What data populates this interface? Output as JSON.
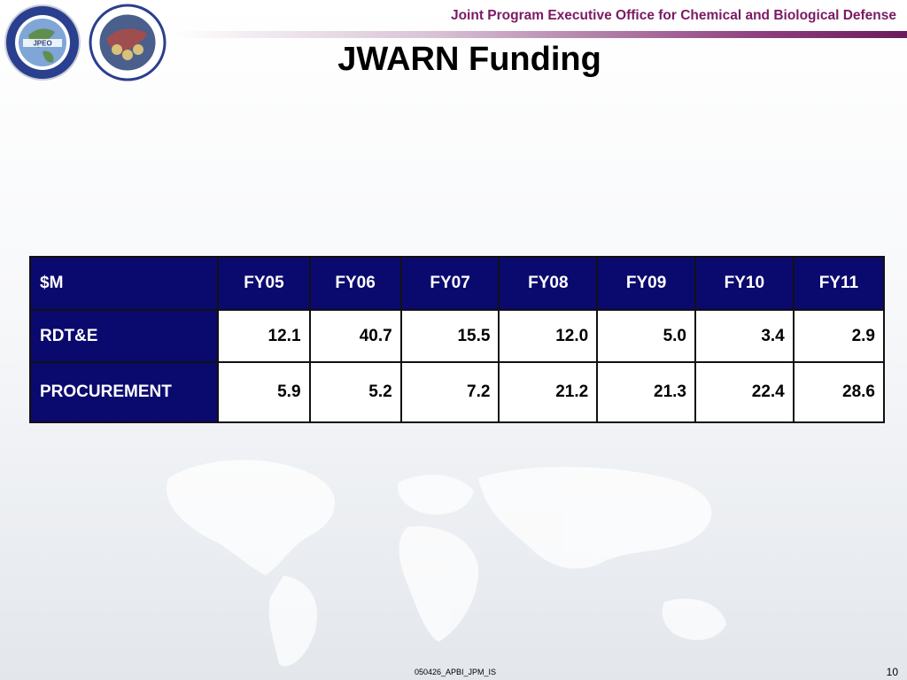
{
  "header": {
    "organization": "Joint Program Executive Office for Chemical and Biological Defense",
    "logos": [
      "jpeo-cbd-seal",
      "information-systems-jpm-is-seal"
    ]
  },
  "slide": {
    "title": "JWARN Funding",
    "footer_code": "050426_APBI_JPM_IS",
    "page_number": "10"
  },
  "table": {
    "columns": [
      "$M",
      "FY05",
      "FY06",
      "FY07",
      "FY08",
      "FY09",
      "FY10",
      "FY11"
    ],
    "rows": [
      {
        "label": "RDT&E",
        "values": [
          "12.1",
          "40.7",
          "15.5",
          "12.0",
          "5.0",
          "3.4",
          "2.9"
        ]
      },
      {
        "label": "PROCUREMENT",
        "values": [
          "5.9",
          "5.2",
          "7.2",
          "21.2",
          "21.3",
          "22.4",
          "28.6"
        ]
      }
    ]
  },
  "colors": {
    "table_header_bg": "#0a0a6e",
    "header_text": "#7b1a64",
    "header_bar": "#8e3f7e"
  }
}
